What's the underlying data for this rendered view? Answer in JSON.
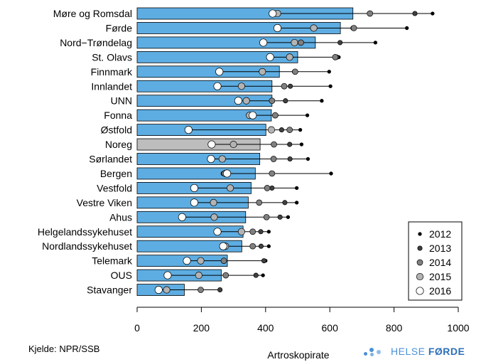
{
  "chart_data": {
    "type": "bar",
    "xlabel": "Artroskopirate",
    "xlim": [
      0,
      1000
    ],
    "xticks": [
      0,
      200,
      400,
      600,
      800,
      1000
    ],
    "highlight_category": "Noreg",
    "bar_color": "#5dade2",
    "highlight_color": "#bdbdbd",
    "categories": [
      "Møre og Romsdal",
      "Førde",
      "Nord−Trøndelag",
      "St. Olavs",
      "Finnmark",
      "Innlandet",
      "UNN",
      "Fonna",
      "Østfold",
      "Noreg",
      "Sørlandet",
      "Bergen",
      "Vestfold",
      "Vestre Viken",
      "Ahus",
      "Helgelandssykehuset",
      "Nordlandssykehuset",
      "Telemark",
      "OUS",
      "Stavanger"
    ],
    "values": [
      672,
      633,
      555,
      500,
      443,
      420,
      420,
      418,
      401,
      383,
      382,
      368,
      355,
      346,
      338,
      330,
      326,
      281,
      262,
      147
    ],
    "series": [
      {
        "name": "2012",
        "fill": "#000000",
        "radius": 2.3,
        "values": [
          920,
          840,
          742,
          628,
          598,
          602,
          575,
          530,
          508,
          512,
          532,
          604,
          497,
          497,
          470,
          410,
          410,
          400,
          392,
          258
        ]
      },
      {
        "name": "2013",
        "fill": "#404040",
        "radius": 3.2,
        "values": [
          865,
          672,
          632,
          622,
          490,
          477,
          462,
          432,
          450,
          475,
          476,
          268,
          420,
          460,
          445,
          385,
          386,
          395,
          370,
          258
        ]
      },
      {
        "name": "2014",
        "fill": "#808080",
        "radius": 4.0,
        "values": [
          725,
          675,
          510,
          617,
          492,
          458,
          420,
          430,
          475,
          426,
          425,
          420,
          405,
          380,
          403,
          360,
          360,
          270,
          276,
          198
        ]
      },
      {
        "name": "2015",
        "fill": "#b3b3b3",
        "radius": 4.7,
        "values": [
          437,
          550,
          490,
          475,
          390,
          325,
          340,
          350,
          418,
          300,
          265,
          275,
          290,
          238,
          240,
          325,
          275,
          198,
          192,
          92
        ]
      },
      {
        "name": "2016",
        "fill": "#ffffff",
        "radius": 5.2,
        "values": [
          422,
          437,
          393,
          414,
          256,
          250,
          315,
          360,
          160,
          232,
          230,
          280,
          178,
          178,
          140,
          250,
          268,
          155,
          95,
          67
        ]
      }
    ],
    "legend_position": "bottom-right"
  },
  "footer": {
    "source": "Kjelde: NPR/SSB",
    "brand_prefix": "HELSE ",
    "brand_bold": "FØRDE"
  }
}
